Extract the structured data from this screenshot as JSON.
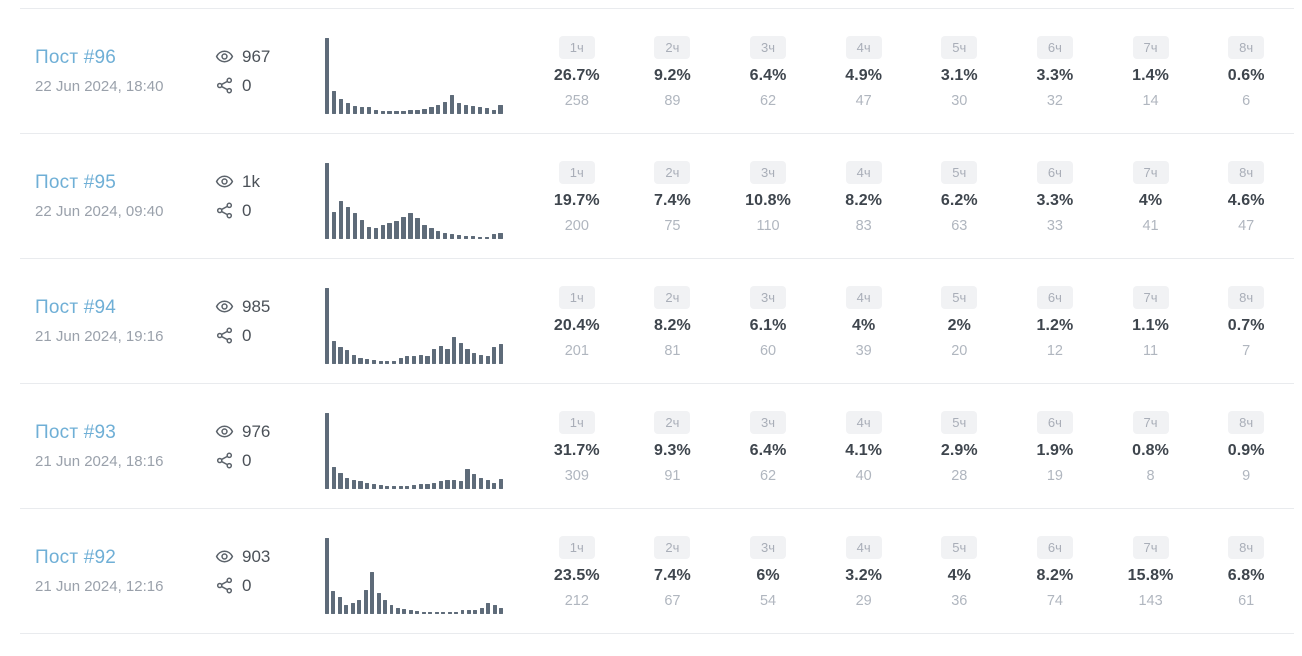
{
  "colors": {
    "post_link": "#6fafd6",
    "date_text": "#9aa1ab",
    "metric_text": "#4b5158",
    "icon": "#5c636b",
    "spark_bar": "#5e6b79",
    "badge_bg": "#f1f2f4",
    "badge_text": "#a9aeb8",
    "percent_text": "#3e454d",
    "count_text": "#b0b6bf",
    "divider": "#e9ebee"
  },
  "icons": {
    "views": "eye-icon",
    "shares": "share-nodes-icon"
  },
  "rows": [
    {
      "title": "Пост #96",
      "date": "22 Jun 2024, 18:40",
      "views": "967",
      "shares": "0",
      "spark": [
        100,
        30,
        20,
        15,
        11,
        9,
        9,
        5,
        4,
        4,
        4,
        4,
        5,
        5,
        7,
        9,
        12,
        16,
        25,
        14,
        12,
        10,
        9,
        8,
        5,
        12
      ],
      "hours": [
        {
          "label": "1ч",
          "percent": "26.7%",
          "count": "258"
        },
        {
          "label": "2ч",
          "percent": "9.2%",
          "count": "89"
        },
        {
          "label": "3ч",
          "percent": "6.4%",
          "count": "62"
        },
        {
          "label": "4ч",
          "percent": "4.9%",
          "count": "47"
        },
        {
          "label": "5ч",
          "percent": "3.1%",
          "count": "30"
        },
        {
          "label": "6ч",
          "percent": "3.3%",
          "count": "32"
        },
        {
          "label": "7ч",
          "percent": "1.4%",
          "count": "14"
        },
        {
          "label": "8ч",
          "percent": "0.6%",
          "count": "6"
        }
      ]
    },
    {
      "title": "Пост #95",
      "date": "22 Jun 2024, 09:40",
      "views": "1k",
      "shares": "0",
      "spark": [
        100,
        35,
        50,
        42,
        34,
        25,
        16,
        14,
        18,
        21,
        24,
        29,
        34,
        27,
        18,
        14,
        11,
        8,
        6,
        5,
        4,
        4,
        3,
        3,
        6,
        8
      ],
      "hours": [
        {
          "label": "1ч",
          "percent": "19.7%",
          "count": "200"
        },
        {
          "label": "2ч",
          "percent": "7.4%",
          "count": "75"
        },
        {
          "label": "3ч",
          "percent": "10.8%",
          "count": "110"
        },
        {
          "label": "4ч",
          "percent": "8.2%",
          "count": "83"
        },
        {
          "label": "5ч",
          "percent": "6.2%",
          "count": "63"
        },
        {
          "label": "6ч",
          "percent": "3.3%",
          "count": "33"
        },
        {
          "label": "7ч",
          "percent": "4%",
          "count": "41"
        },
        {
          "label": "8ч",
          "percent": "4.6%",
          "count": "47"
        }
      ]
    },
    {
      "title": "Пост #94",
      "date": "21 Jun 2024, 19:16",
      "views": "985",
      "shares": "0",
      "spark": [
        100,
        30,
        22,
        18,
        12,
        8,
        6,
        5,
        4,
        4,
        4,
        8,
        10,
        10,
        12,
        10,
        20,
        24,
        20,
        36,
        28,
        20,
        15,
        12,
        10,
        22,
        26
      ],
      "hours": [
        {
          "label": "1ч",
          "percent": "20.4%",
          "count": "201"
        },
        {
          "label": "2ч",
          "percent": "8.2%",
          "count": "81"
        },
        {
          "label": "3ч",
          "percent": "6.1%",
          "count": "60"
        },
        {
          "label": "4ч",
          "percent": "4%",
          "count": "39"
        },
        {
          "label": "5ч",
          "percent": "2%",
          "count": "20"
        },
        {
          "label": "6ч",
          "percent": "1.2%",
          "count": "12"
        },
        {
          "label": "7ч",
          "percent": "1.1%",
          "count": "11"
        },
        {
          "label": "8ч",
          "percent": "0.7%",
          "count": "7"
        }
      ]
    },
    {
      "title": "Пост #93",
      "date": "21 Jun 2024, 18:16",
      "views": "976",
      "shares": "0",
      "spark": [
        100,
        29,
        21,
        15,
        12,
        10,
        8,
        6,
        5,
        4,
        4,
        4,
        4,
        5,
        6,
        7,
        8,
        10,
        12,
        12,
        10,
        26,
        20,
        14,
        12,
        8,
        13
      ],
      "hours": [
        {
          "label": "1ч",
          "percent": "31.7%",
          "count": "309"
        },
        {
          "label": "2ч",
          "percent": "9.3%",
          "count": "91"
        },
        {
          "label": "3ч",
          "percent": "6.4%",
          "count": "62"
        },
        {
          "label": "4ч",
          "percent": "4.1%",
          "count": "40"
        },
        {
          "label": "5ч",
          "percent": "2.9%",
          "count": "28"
        },
        {
          "label": "6ч",
          "percent": "1.9%",
          "count": "19"
        },
        {
          "label": "7ч",
          "percent": "0.8%",
          "count": "8"
        },
        {
          "label": "8ч",
          "percent": "0.9%",
          "count": "9"
        }
      ]
    },
    {
      "title": "Пост #92",
      "date": "21 Jun 2024, 12:16",
      "views": "903",
      "shares": "0",
      "spark": [
        100,
        30,
        22,
        12,
        15,
        18,
        32,
        55,
        28,
        18,
        12,
        8,
        6,
        5,
        4,
        3,
        3,
        2,
        3,
        2,
        3,
        5,
        5,
        5,
        8,
        14,
        12,
        8
      ],
      "hours": [
        {
          "label": "1ч",
          "percent": "23.5%",
          "count": "212"
        },
        {
          "label": "2ч",
          "percent": "7.4%",
          "count": "67"
        },
        {
          "label": "3ч",
          "percent": "6%",
          "count": "54"
        },
        {
          "label": "4ч",
          "percent": "3.2%",
          "count": "29"
        },
        {
          "label": "5ч",
          "percent": "4%",
          "count": "36"
        },
        {
          "label": "6ч",
          "percent": "8.2%",
          "count": "74"
        },
        {
          "label": "7ч",
          "percent": "15.8%",
          "count": "143"
        },
        {
          "label": "8ч",
          "percent": "6.8%",
          "count": "61"
        }
      ]
    }
  ]
}
